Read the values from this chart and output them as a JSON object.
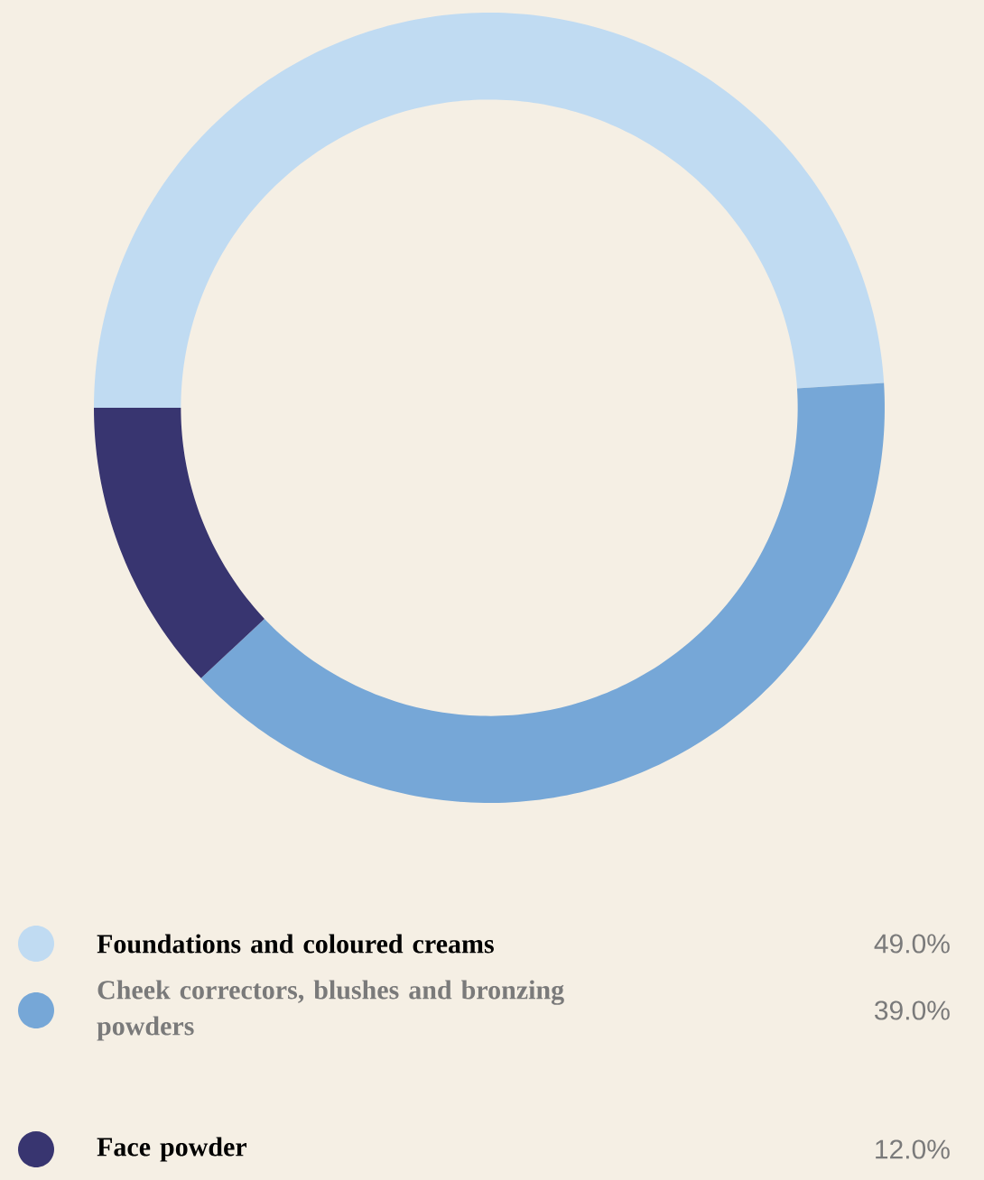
{
  "chart_data": {
    "type": "donut",
    "categories": [
      "Foundations and coloured creams",
      "Cheek correctors, blushes and bronzing powders",
      "Face powder"
    ],
    "values": [
      49.0,
      39.0,
      12.0
    ],
    "colors": [
      "#c0dbf2",
      "#76a7d7",
      "#383570"
    ],
    "value_labels": [
      "49.0%",
      "39.0%",
      "12.0%"
    ],
    "legend": "bottom"
  }
}
